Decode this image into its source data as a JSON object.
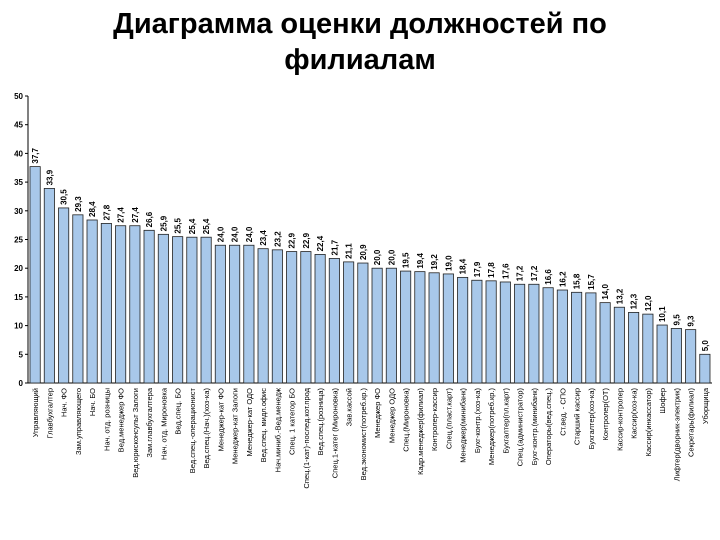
{
  "chart_data": {
    "type": "bar",
    "title": "Диаграмма оценки должностей по филиалам",
    "categories": [
      "Управляющий",
      "Главбухгалтер",
      "Нач. ФО",
      "Зам.управляющего",
      "Нач. БО",
      "Нач. отд. розницы",
      "Вед.менеджер ФО",
      "Вед.юрисконсульт Залоги",
      "Зам.главбухгалтера",
      "Нач. отд. Мироновка",
      "Вед.спец. БО",
      "Вед.спец.-операционист",
      "Вед.спец.(Нач.)(хоз-ка)",
      "Менеджер-кат ФО",
      "Менеджер-кат Залоги",
      "Менеджер-кат ОДО",
      "Вед.спец. мидл.офис",
      "Нач.миниб.-Вед.менедж",
      "Спец. 1 категор БО",
      "Спец.(1-кат)-послед.кот.прод",
      "Вед.спец.(розница)",
      "Спец.1-катег (Мироновка)",
      "Зав.кассой",
      "Вед.экономист(потреб.кр.)",
      "Менеджер ФО",
      "Менеджер ОДО",
      "Спец.(Мироновка)",
      "Кадр.менеджер(филиал)",
      "Контролер-кассир",
      "Спец.(пласт.карт)",
      "Менеджер(минибанк)",
      "Бухг-контр.(хоз-ка)",
      "Менеджер(потреб.кр.)",
      "Бухгалтер(пл.карт)",
      "Спец.(администратор)",
      "Бухг-контр.(минибанк)",
      "Операторы(вед.спец.)",
      "Ст.вед. - СПО",
      "Старший кассир",
      "Бухгалтер(хоз-ка)",
      "Контролер(ОТ)",
      "Кассир-контролер",
      "Кассир(хоз-ка)",
      "Кассир(инкассатор)",
      "Шофер",
      "Лифтер(дворник-электрик)",
      "Секретарь(филиал)",
      "Уборщица"
    ],
    "values": [
      37.7,
      33.9,
      30.5,
      29.3,
      28.4,
      27.8,
      27.4,
      27.4,
      26.6,
      25.9,
      25.5,
      25.4,
      25.4,
      24.0,
      24.0,
      24.0,
      23.4,
      23.2,
      22.9,
      22.9,
      22.4,
      21.7,
      21.1,
      20.9,
      20.0,
      20.0,
      19.5,
      19.4,
      19.2,
      19.0,
      18.4,
      17.9,
      17.8,
      17.6,
      17.2,
      17.2,
      16.6,
      16.2,
      15.8,
      15.7,
      14.0,
      13.2,
      12.3,
      12.0,
      10.1,
      9.5,
      9.3,
      5.0
    ],
    "value_labels": [
      "37,7",
      "33,9",
      "30,5",
      "29,3",
      "28,4",
      "27,8",
      "27,4",
      "27,4",
      "26,6",
      "25,9",
      "25,5",
      "25,4",
      "25,4",
      "24,0",
      "24,0",
      "24,0",
      "23,4",
      "23,2",
      "22,9",
      "22,9",
      "22,4",
      "21,7",
      "21,1",
      "20,9",
      "20,0",
      "20,0",
      "19,5",
      "19,4",
      "19,2",
      "19,0",
      "18,4",
      "17,9",
      "17,8",
      "17,6",
      "17,2",
      "17,2",
      "16,6",
      "16,2",
      "15,8",
      "15,7",
      "14,0",
      "13,2",
      "12,3",
      "12,0",
      "10,1",
      "9,5",
      "9,3",
      "5,0"
    ],
    "color": "#a8c8ea",
    "ylim": [
      0,
      50
    ],
    "yticks": [
      0,
      5,
      10,
      15,
      20,
      25,
      30,
      35,
      40,
      45,
      50
    ],
    "grid": false
  }
}
